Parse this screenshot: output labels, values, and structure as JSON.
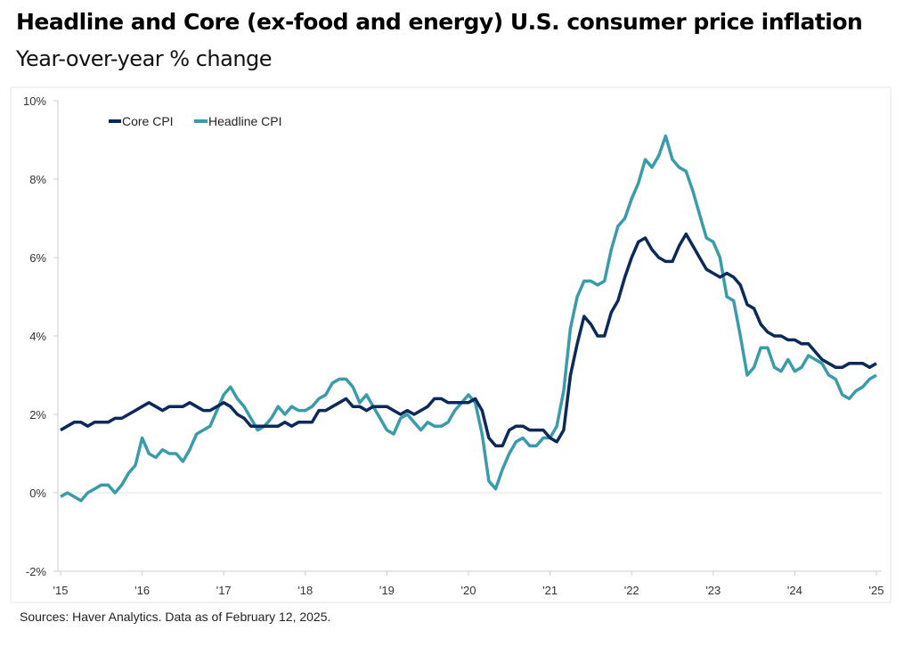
{
  "chart_data": {
    "type": "line",
    "title": "Headline and Core (ex-food and energy) U.S. consumer price inflation",
    "subtitle": "Year-over-year % change",
    "source": "Sources: Haver Analytics. Data as of February 12, 2025.",
    "x_start": "2015-01",
    "x_end": "2025-01",
    "frequency": "monthly",
    "x_tick_labels": [
      "'15",
      "'16",
      "'17",
      "'18",
      "'19",
      "'20",
      "'21",
      "'22",
      "'23",
      "'24",
      "'25"
    ],
    "y_tick_labels": [
      "-2%",
      "0%",
      "2%",
      "4%",
      "6%",
      "8%",
      "10%"
    ],
    "ylim": [
      -2,
      10
    ],
    "grid": false,
    "legend_position": "top-left",
    "series": [
      {
        "name": "Core CPI",
        "color": "#0b2a5b",
        "values": [
          1.6,
          1.7,
          1.8,
          1.8,
          1.7,
          1.8,
          1.8,
          1.8,
          1.9,
          1.9,
          2.0,
          2.1,
          2.2,
          2.3,
          2.2,
          2.1,
          2.2,
          2.2,
          2.2,
          2.3,
          2.2,
          2.1,
          2.1,
          2.2,
          2.3,
          2.2,
          2.0,
          1.9,
          1.7,
          1.7,
          1.7,
          1.7,
          1.7,
          1.8,
          1.7,
          1.8,
          1.8,
          1.8,
          2.1,
          2.1,
          2.2,
          2.3,
          2.4,
          2.2,
          2.2,
          2.1,
          2.2,
          2.2,
          2.2,
          2.1,
          2.0,
          2.1,
          2.0,
          2.1,
          2.2,
          2.4,
          2.4,
          2.3,
          2.3,
          2.3,
          2.3,
          2.4,
          2.1,
          1.4,
          1.2,
          1.2,
          1.6,
          1.7,
          1.7,
          1.6,
          1.6,
          1.6,
          1.4,
          1.3,
          1.6,
          3.0,
          3.8,
          4.5,
          4.3,
          4.0,
          4.0,
          4.6,
          4.9,
          5.5,
          6.0,
          6.4,
          6.5,
          6.2,
          6.0,
          5.9,
          5.9,
          6.3,
          6.6,
          6.3,
          6.0,
          5.7,
          5.6,
          5.5,
          5.6,
          5.5,
          5.3,
          4.8,
          4.7,
          4.3,
          4.1,
          4.0,
          4.0,
          3.9,
          3.9,
          3.8,
          3.8,
          3.6,
          3.4,
          3.3,
          3.2,
          3.2,
          3.3,
          3.3,
          3.3,
          3.2,
          3.3
        ]
      },
      {
        "name": "Headline CPI",
        "color": "#3a9bab",
        "values": [
          -0.1,
          0.0,
          -0.1,
          -0.2,
          0.0,
          0.1,
          0.2,
          0.2,
          0.0,
          0.2,
          0.5,
          0.7,
          1.4,
          1.0,
          0.9,
          1.1,
          1.0,
          1.0,
          0.8,
          1.1,
          1.5,
          1.6,
          1.7,
          2.1,
          2.5,
          2.7,
          2.4,
          2.2,
          1.9,
          1.6,
          1.7,
          1.9,
          2.2,
          2.0,
          2.2,
          2.1,
          2.1,
          2.2,
          2.4,
          2.5,
          2.8,
          2.9,
          2.9,
          2.7,
          2.3,
          2.5,
          2.2,
          1.9,
          1.6,
          1.5,
          1.9,
          2.0,
          1.8,
          1.6,
          1.8,
          1.7,
          1.7,
          1.8,
          2.1,
          2.3,
          2.5,
          2.3,
          1.5,
          0.3,
          0.1,
          0.6,
          1.0,
          1.3,
          1.4,
          1.2,
          1.2,
          1.4,
          1.4,
          1.7,
          2.6,
          4.2,
          5.0,
          5.4,
          5.4,
          5.3,
          5.4,
          6.2,
          6.8,
          7.0,
          7.5,
          7.9,
          8.5,
          8.3,
          8.6,
          9.1,
          8.5,
          8.3,
          8.2,
          7.7,
          7.1,
          6.5,
          6.4,
          6.0,
          5.0,
          4.9,
          4.0,
          3.0,
          3.2,
          3.7,
          3.7,
          3.2,
          3.1,
          3.4,
          3.1,
          3.2,
          3.5,
          3.4,
          3.3,
          3.0,
          2.9,
          2.5,
          2.4,
          2.6,
          2.7,
          2.9,
          3.0
        ]
      }
    ]
  }
}
